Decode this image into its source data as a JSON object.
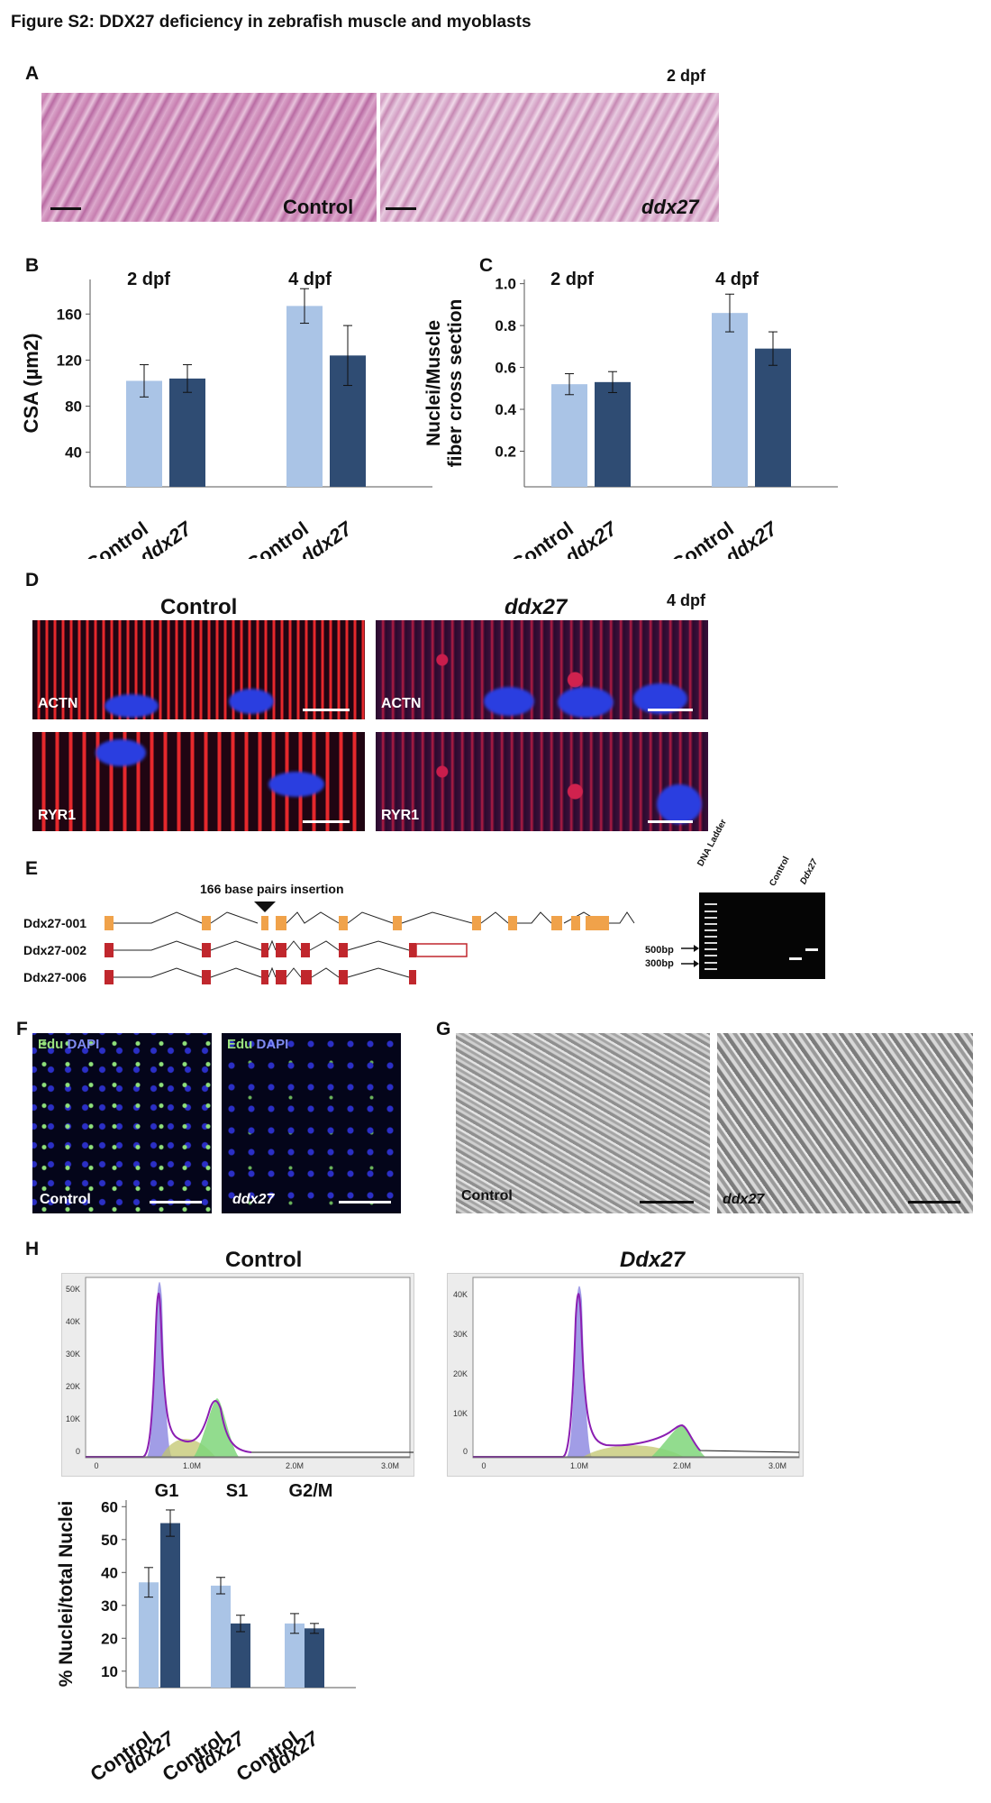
{
  "figure_title": "Figure S2: DDX27 deficiency in zebrafish muscle and myoblasts",
  "panels": {
    "A": {
      "label": "A",
      "stage": "2 dpf",
      "images": [
        {
          "label": "Control"
        },
        {
          "label": "ddx27"
        }
      ]
    },
    "D": {
      "label": "D",
      "stage": "4 dpf",
      "col_headers": [
        "Control",
        "ddx27"
      ],
      "images": [
        {
          "label": "ACTN"
        },
        {
          "label": "ACTN"
        },
        {
          "label": "RYR1"
        },
        {
          "label": "RYR1"
        }
      ]
    },
    "E": {
      "label": "E",
      "insertion_label": "166 base pairs insertion",
      "transcripts": [
        "Ddx27-001",
        "Ddx27-002",
        "Ddx27-006"
      ],
      "colors": {
        "t001": "#f0a24a",
        "t002": "#c0272d",
        "t006": "#c0272d"
      },
      "gel": {
        "lanes": [
          "DNA Ladder",
          "Control",
          "Ddx27"
        ],
        "markers": [
          "500bp",
          "300bp"
        ]
      }
    },
    "F": {
      "label": "F",
      "stain_edu": "Edu",
      "stain_dapi": "DAPI",
      "images": [
        {
          "label": "Control"
        },
        {
          "label": "ddx27"
        }
      ]
    },
    "G": {
      "label": "G",
      "images": [
        {
          "label": "Control"
        },
        {
          "label": "ddx27"
        }
      ]
    },
    "H": {
      "label": "H",
      "histograms": [
        {
          "title": "Control",
          "yticks": [
            "50K",
            "40K",
            "30K",
            "20K",
            "10K",
            "0"
          ],
          "xticks": [
            "0",
            "1.0M",
            "2.0M",
            "3.0M"
          ]
        },
        {
          "title": "Ddx27",
          "yticks": [
            "40K",
            "30K",
            "20K",
            "10K",
            "0"
          ],
          "xticks": [
            "0",
            "1.0M",
            "2.0M",
            "3.0M"
          ]
        }
      ]
    }
  },
  "colors": {
    "control": "#aac4e6",
    "mutant": "#2f4c73",
    "he": "#c77eb0"
  },
  "chart_data": [
    {
      "panel": "B",
      "type": "bar",
      "ylabel": "CSA (µm2)",
      "groups": [
        "2 dpf",
        "4 dpf"
      ],
      "categories": [
        "Control",
        "ddx27",
        "Control",
        "ddx27"
      ],
      "yticks": [
        40,
        80,
        120,
        160
      ],
      "ylim": [
        10,
        190
      ],
      "series": [
        {
          "values": [
            102,
            104,
            167,
            124
          ],
          "err": [
            14,
            12,
            15,
            26
          ]
        }
      ]
    },
    {
      "panel": "C",
      "type": "bar",
      "ylabel": "Nuclei/Muscle fiber cross section",
      "groups": [
        "2 dpf",
        "4 dpf"
      ],
      "categories": [
        "Control",
        "ddx27",
        "Control",
        "ddx27"
      ],
      "yticks": [
        0.2,
        0.4,
        0.6,
        0.8,
        1.0
      ],
      "ylim": [
        0.03,
        1.02
      ],
      "series": [
        {
          "values": [
            0.52,
            0.53,
            0.86,
            0.69
          ],
          "err": [
            0.05,
            0.05,
            0.09,
            0.08
          ]
        }
      ]
    },
    {
      "panel": "H",
      "type": "bar",
      "ylabel": "% Nuclei/total Nuclei",
      "groups": [
        "G1",
        "S1",
        "G2/M"
      ],
      "categories": [
        "Control",
        "ddx27",
        "Control",
        "ddx27",
        "Control",
        "ddx27"
      ],
      "yticks": [
        10,
        20,
        30,
        40,
        50,
        60
      ],
      "ylim": [
        5,
        62
      ],
      "series": [
        {
          "values": [
            37,
            55,
            36,
            24.5,
            24.5,
            23
          ],
          "err": [
            4.5,
            4,
            2.5,
            2.5,
            3,
            1.5
          ]
        }
      ]
    }
  ]
}
